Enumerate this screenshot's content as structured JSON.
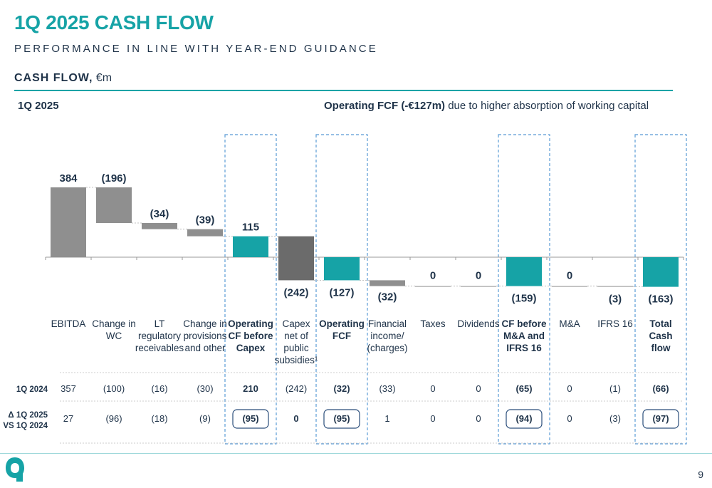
{
  "header": {
    "title": "1Q 2025 CASH FLOW",
    "subtitle": "PERFORMANCE IN LINE WITH YEAR-END GUIDANCE",
    "section_bold": "CASH FLOW,",
    "section_unit": " €m",
    "period": "1Q 2025",
    "headline_bold": "Operating FCF (-€127m)",
    "headline_rest": " due to higher absorption of working capital"
  },
  "colors": {
    "accent": "#16a3a6",
    "bar_grey": "#8f8f8f",
    "bar_dark": "#6b6b6b",
    "text": "#1f3349",
    "dash_box": "#5b9bd5"
  },
  "chart_data": {
    "type": "bar",
    "subtype": "waterfall",
    "categories": [
      [
        "EBITDA"
      ],
      [
        "Change in",
        "WC"
      ],
      [
        "LT",
        "regulatory",
        "receivables"
      ],
      [
        "Change in",
        "provisions",
        "and other"
      ],
      [
        "Operating",
        "CF before",
        "Capex"
      ],
      [
        "Capex",
        "net of",
        "public",
        "subsidies¹"
      ],
      [
        "Operating",
        "FCF"
      ],
      [
        "Financial",
        "income/",
        "(charges)"
      ],
      [
        "Taxes"
      ],
      [
        "Dividends"
      ],
      [
        "CF before",
        "M&A and",
        "IFRS 16"
      ],
      [
        "M&A"
      ],
      [
        "IFRS 16"
      ],
      [
        "Total",
        "Cash",
        "flow"
      ]
    ],
    "values": [
      384,
      -196,
      -34,
      -39,
      115,
      -242,
      -127,
      -32,
      0,
      0,
      -159,
      0,
      -3,
      -163
    ],
    "value_labels": [
      "384",
      "(196)",
      "(34)",
      "(39)",
      "115",
      "(242)",
      "(127)",
      "(32)",
      "0",
      "0",
      "(159)",
      "0",
      "(3)",
      "(163)"
    ],
    "kinds": [
      "total",
      "delta",
      "delta",
      "delta",
      "subtotal",
      "delta",
      "subtotal",
      "delta",
      "delta",
      "delta",
      "subtotal",
      "delta",
      "delta",
      "subtotal"
    ],
    "highlighted": [
      false,
      false,
      false,
      false,
      true,
      false,
      true,
      false,
      false,
      false,
      true,
      false,
      false,
      true
    ],
    "table": {
      "rows": [
        {
          "label": [
            "1Q 2024"
          ],
          "values": [
            "357",
            "(100)",
            "(16)",
            "(30)",
            "210",
            "(242)",
            "(32)",
            "(33)",
            "0",
            "0",
            "(65)",
            "0",
            "(1)",
            "(66)"
          ]
        },
        {
          "label": [
            "Δ 1Q 2025",
            "VS 1Q 2024"
          ],
          "values": [
            "27",
            "(96)",
            "(18)",
            "(9)",
            "(95)",
            "0",
            "(95)",
            "1",
            "0",
            "0",
            "(94)",
            "0",
            "(3)",
            "(97)"
          ]
        }
      ]
    }
  },
  "footer": {
    "page_number": "9"
  }
}
